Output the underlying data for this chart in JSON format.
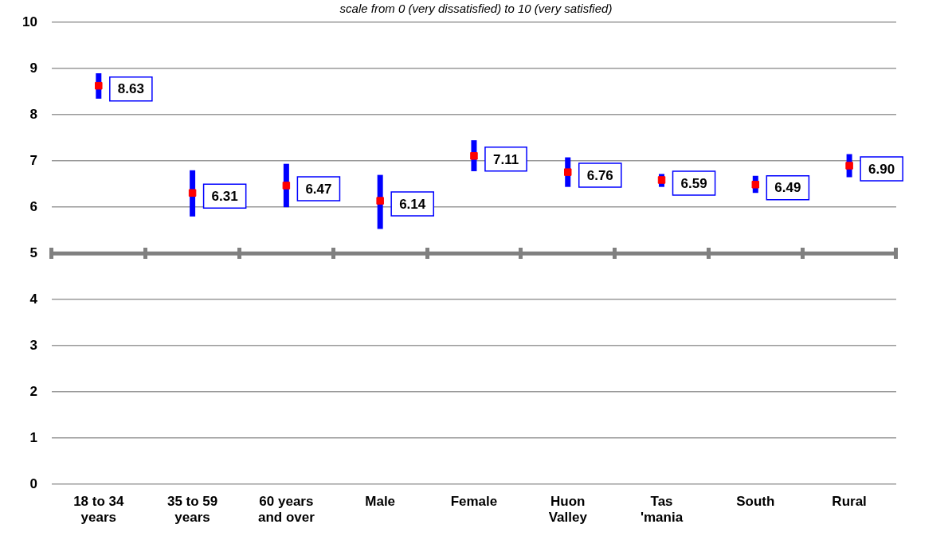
{
  "chart_data": {
    "type": "scatter",
    "subtitle": "scale from 0 (very dissatisfied) to 10 (very satisfied)",
    "categories": [
      "18 to 34 years",
      "35 to 59 years",
      "60 years and over",
      "Male",
      "Female",
      "Huon Valley",
      "Tas 'mania",
      "South",
      "Rural"
    ],
    "series": [
      {
        "color": "#ff0000",
        "values": [
          8.63,
          6.31,
          6.47,
          6.14,
          7.11,
          6.76,
          6.59,
          6.49,
          6.9
        ],
        "value_labels": [
          "8.63",
          "6.31",
          "6.47",
          "6.14",
          "7.11",
          "6.76",
          "6.59",
          "6.49",
          "6.90"
        ],
        "errors": [
          [
            8.35,
            8.9
          ],
          [
            5.8,
            6.8
          ],
          [
            6.0,
            6.94
          ],
          [
            5.53,
            6.7
          ],
          [
            6.78,
            7.45
          ],
          [
            6.44,
            7.08
          ],
          [
            6.44,
            6.72
          ],
          [
            6.31,
            6.68
          ],
          [
            6.65,
            7.15
          ]
        ]
      }
    ],
    "ylim": [
      0,
      10
    ],
    "yticks": [
      0,
      1,
      2,
      3,
      4,
      5,
      6,
      7,
      8,
      9,
      10
    ],
    "grid": "y",
    "data_labels": true,
    "legend": false,
    "marker": "square",
    "ref_lines": [
      {
        "axis": "y",
        "value": 5,
        "color": "#808080"
      }
    ]
  }
}
